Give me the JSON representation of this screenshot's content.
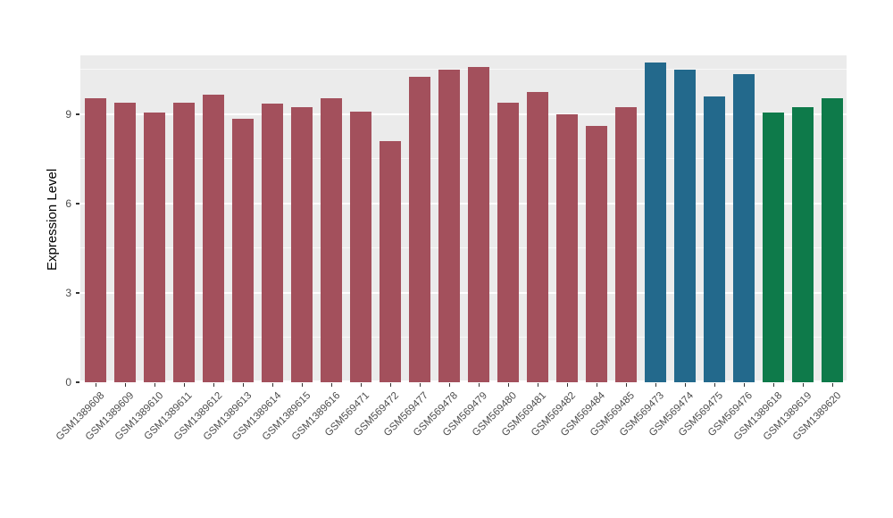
{
  "chart_data": {
    "type": "bar",
    "title": "",
    "xlabel": "",
    "ylabel": "Expression Level",
    "ylim": [
      0,
      10.98
    ],
    "yticks": [
      0,
      3,
      6,
      9
    ],
    "yticks_minor": [
      1.5,
      4.5,
      7.5,
      10.5
    ],
    "grid": true,
    "legend_position": "none",
    "panel_bg": "#EBEBEB",
    "grid_color": "#FFFFFF",
    "categories": [
      "GSM1389608",
      "GSM1389609",
      "GSM1389610",
      "GSM1389611",
      "GSM1389612",
      "GSM1389613",
      "GSM1389614",
      "GSM1389615",
      "GSM1389616",
      "GSM569471",
      "GSM569472",
      "GSM569477",
      "GSM569478",
      "GSM569479",
      "GSM569480",
      "GSM569481",
      "GSM569482",
      "GSM569484",
      "GSM569485",
      "GSM569473",
      "GSM569474",
      "GSM569475",
      "GSM569476",
      "GSM1389618",
      "GSM1389619",
      "GSM1389620"
    ],
    "values": [
      9.55,
      9.4,
      9.05,
      9.4,
      9.65,
      8.85,
      9.35,
      9.25,
      9.55,
      9.1,
      8.1,
      10.25,
      10.5,
      10.6,
      9.4,
      9.75,
      9.0,
      8.6,
      9.25,
      10.75,
      10.5,
      9.6,
      10.35,
      9.05,
      9.25,
      9.55
    ],
    "bar_groups": [
      "group1",
      "group1",
      "group1",
      "group1",
      "group1",
      "group1",
      "group1",
      "group1",
      "group1",
      "group1",
      "group1",
      "group1",
      "group1",
      "group1",
      "group1",
      "group1",
      "group1",
      "group1",
      "group1",
      "group2",
      "group2",
      "group2",
      "group2",
      "group3",
      "group3",
      "group3"
    ],
    "group_colors": {
      "group1": "#A3505C",
      "group2": "#23698C",
      "group3": "#0E7A4A"
    }
  }
}
